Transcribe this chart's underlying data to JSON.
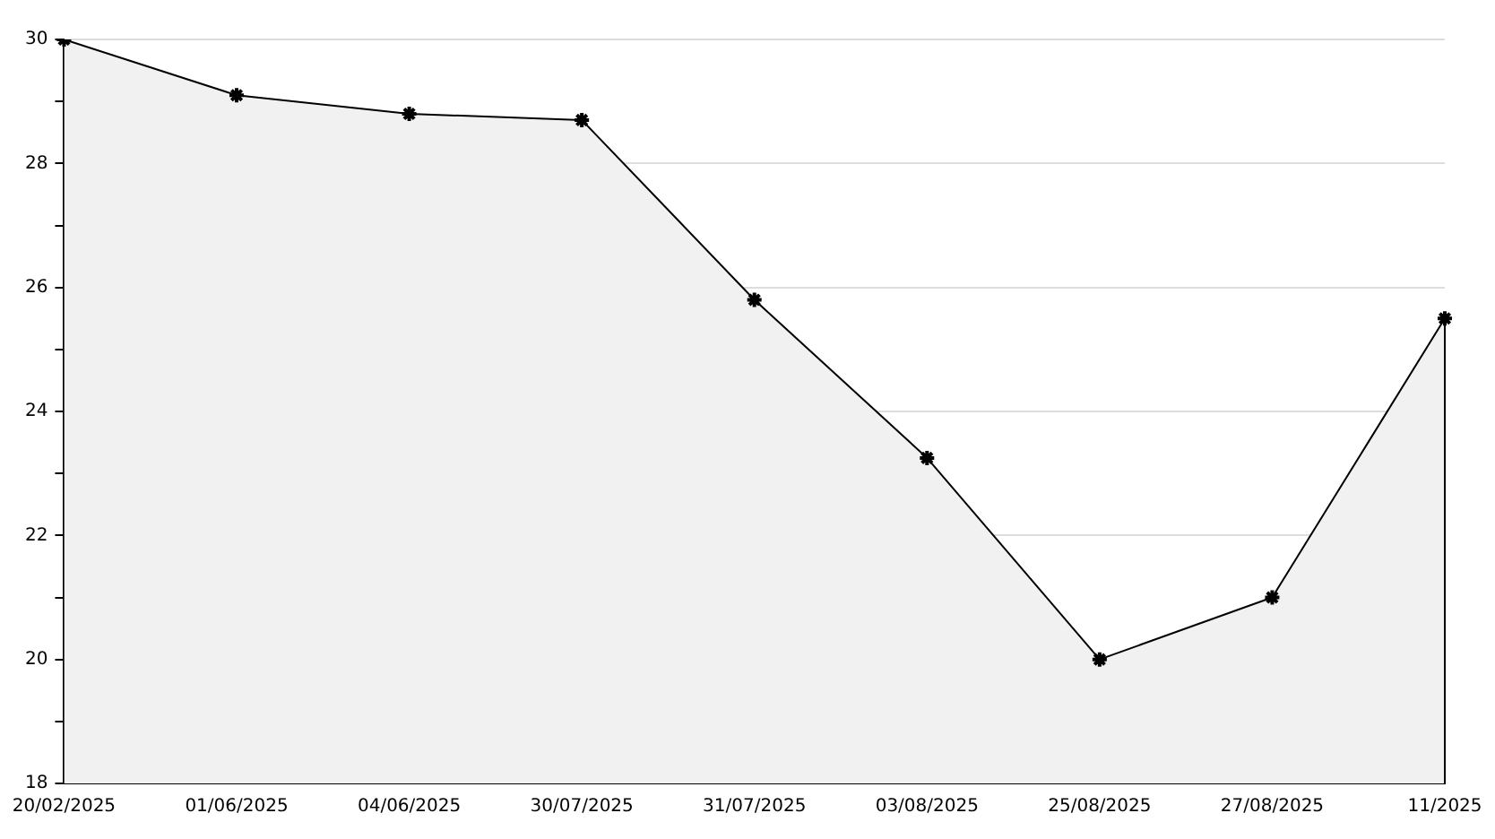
{
  "chart_data": {
    "type": "area",
    "categories": [
      "20/02/2025",
      "01/06/2025",
      "04/06/2025",
      "30/07/2025",
      "31/07/2025",
      "03/08/2025",
      "25/08/2025",
      "27/08/2025",
      "11/2025"
    ],
    "series": [
      {
        "color": "#000000",
        "values": [
          30,
          29.1,
          28.8,
          28.7,
          25.8,
          23.25,
          20,
          21,
          25.5
        ]
      }
    ],
    "ylim": [
      18,
      30
    ],
    "yticks": [
      18,
      {
        "value": 19,
        "label": null
      },
      20,
      {
        "value": 21,
        "label": null
      },
      22,
      {
        "value": 23,
        "label": null
      },
      24,
      {
        "value": 25,
        "label": null
      },
      26,
      {
        "value": 27,
        "label": null
      },
      28,
      {
        "value": 29,
        "label": null
      },
      30
    ],
    "grid": "y",
    "marker": "cross",
    "line_style": "solid",
    "legend": false
  }
}
